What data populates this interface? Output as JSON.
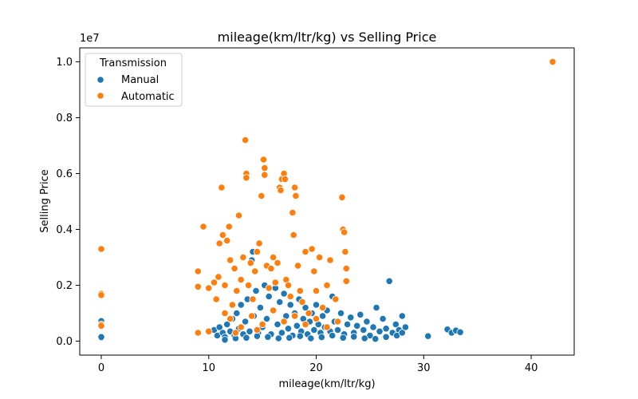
{
  "chart_data": {
    "type": "scatter",
    "title": "mileage(km/ltr/kg) vs Selling Price",
    "xlabel": "mileage(km/ltr/kg)",
    "ylabel": "Selling Price",
    "y_scale_label": "1e7",
    "xlim": [
      -2,
      44
    ],
    "ylim": [
      -0.5,
      10.5
    ],
    "x_ticks": [
      0,
      10,
      20,
      30,
      40
    ],
    "y_ticks": [
      0.0,
      0.2,
      0.4,
      0.6,
      0.8,
      1.0
    ],
    "y_tick_labels": [
      "0.0",
      "0.2",
      "0.4",
      "0.6",
      "0.8",
      "1.0"
    ],
    "grid": false,
    "legend": {
      "title": "Transmission",
      "position": "top-left"
    },
    "series": [
      {
        "name": "Manual",
        "color": "#1f77b4",
        "points": [
          [
            0,
            0.72
          ],
          [
            0,
            0.12
          ],
          [
            0,
            0.15
          ],
          [
            10.5,
            0.4
          ],
          [
            10.8,
            0.2
          ],
          [
            11.0,
            0.5
          ],
          [
            11.3,
            0.3
          ],
          [
            11.5,
            0.15
          ],
          [
            11.7,
            0.6
          ],
          [
            12.0,
            0.35
          ],
          [
            12.2,
            0.8
          ],
          [
            12.4,
            0.2
          ],
          [
            12.6,
            1.0
          ],
          [
            12.8,
            0.45
          ],
          [
            13.0,
            1.3
          ],
          [
            13.2,
            0.25
          ],
          [
            13.4,
            0.7
          ],
          [
            13.6,
            1.5
          ],
          [
            13.8,
            0.35
          ],
          [
            14.0,
            2.9
          ],
          [
            14.1,
            3.2
          ],
          [
            14.2,
            0.9
          ],
          [
            14.4,
            1.8
          ],
          [
            14.6,
            0.3
          ],
          [
            14.8,
            1.2
          ],
          [
            15.0,
            0.5
          ],
          [
            15.2,
            2.0
          ],
          [
            15.4,
            0.8
          ],
          [
            15.6,
            1.6
          ],
          [
            15.8,
            0.25
          ],
          [
            16.0,
            1.1
          ],
          [
            16.2,
            1.9
          ],
          [
            16.4,
            0.6
          ],
          [
            16.6,
            1.4
          ],
          [
            16.8,
            0.3
          ],
          [
            17.0,
            1.7
          ],
          [
            17.2,
            0.9
          ],
          [
            17.4,
            0.45
          ],
          [
            17.6,
            1.3
          ],
          [
            17.8,
            0.2
          ],
          [
            18.0,
            1.0
          ],
          [
            18.2,
            0.55
          ],
          [
            18.4,
            1.5
          ],
          [
            18.6,
            0.35
          ],
          [
            18.8,
            0.8
          ],
          [
            19.0,
            1.2
          ],
          [
            19.2,
            0.25
          ],
          [
            19.4,
            0.7
          ],
          [
            19.6,
            1.0
          ],
          [
            19.8,
            0.4
          ],
          [
            20.0,
            1.3
          ],
          [
            20.2,
            0.6
          ],
          [
            20.4,
            0.3
          ],
          [
            20.6,
            0.9
          ],
          [
            20.8,
            0.5
          ],
          [
            21.0,
            1.1
          ],
          [
            21.3,
            0.35
          ],
          [
            21.5,
            1.6
          ],
          [
            21.7,
            0.7
          ],
          [
            22.0,
            0.4
          ],
          [
            22.3,
            1.0
          ],
          [
            22.6,
            0.25
          ],
          [
            22.9,
            0.6
          ],
          [
            23.2,
            0.85
          ],
          [
            23.5,
            0.3
          ],
          [
            23.8,
            0.55
          ],
          [
            24.1,
            0.95
          ],
          [
            24.4,
            0.4
          ],
          [
            24.7,
            0.7
          ],
          [
            25.0,
            0.2
          ],
          [
            25.3,
            0.5
          ],
          [
            25.6,
            1.2
          ],
          [
            25.9,
            0.35
          ],
          [
            26.2,
            0.8
          ],
          [
            26.5,
            0.45
          ],
          [
            26.8,
            2.15
          ],
          [
            27.1,
            0.3
          ],
          [
            27.4,
            0.6
          ],
          [
            27.7,
            0.4
          ],
          [
            28.0,
            0.9
          ],
          [
            28.3,
            0.5
          ],
          [
            30.4,
            0.18
          ],
          [
            32.2,
            0.42
          ],
          [
            32.6,
            0.3
          ],
          [
            33.0,
            0.38
          ],
          [
            33.4,
            0.32
          ],
          [
            15.5,
            0.15
          ],
          [
            16.5,
            0.1
          ],
          [
            17.5,
            0.12
          ],
          [
            18.5,
            0.18
          ],
          [
            19.5,
            0.1
          ],
          [
            20.5,
            0.14
          ],
          [
            21.5,
            0.2
          ],
          [
            22.5,
            0.12
          ],
          [
            23.5,
            0.16
          ],
          [
            24.5,
            0.1
          ],
          [
            25.5,
            0.08
          ],
          [
            26.5,
            0.15
          ],
          [
            13.5,
            0.12
          ],
          [
            14.5,
            0.18
          ],
          [
            12.5,
            0.1
          ],
          [
            11.5,
            0.05
          ],
          [
            27.5,
            0.2
          ],
          [
            28.0,
            0.3
          ]
        ]
      },
      {
        "name": "Automatic",
        "color": "#ff7f0e",
        "points": [
          [
            0,
            3.3
          ],
          [
            0,
            1.7
          ],
          [
            0,
            1.65
          ],
          [
            0,
            0.6
          ],
          [
            0,
            0.55
          ],
          [
            9.0,
            2.5
          ],
          [
            9.0,
            1.95
          ],
          [
            9.0,
            0.3
          ],
          [
            9.5,
            4.1
          ],
          [
            10.0,
            1.9
          ],
          [
            10.0,
            0.35
          ],
          [
            10.5,
            2.1
          ],
          [
            10.7,
            1.5
          ],
          [
            10.9,
            2.3
          ],
          [
            11.0,
            3.5
          ],
          [
            11.2,
            5.5
          ],
          [
            11.3,
            3.8
          ],
          [
            11.5,
            2.0
          ],
          [
            11.7,
            3.6
          ],
          [
            11.9,
            4.1
          ],
          [
            12.0,
            2.9
          ],
          [
            12.2,
            1.3
          ],
          [
            12.4,
            2.6
          ],
          [
            12.6,
            1.8
          ],
          [
            12.8,
            4.5
          ],
          [
            13.0,
            2.2
          ],
          [
            13.2,
            3.0
          ],
          [
            13.4,
            7.2
          ],
          [
            13.5,
            6.0
          ],
          [
            13.5,
            5.85
          ],
          [
            13.7,
            2.0
          ],
          [
            13.9,
            2.8
          ],
          [
            14.1,
            1.5
          ],
          [
            14.3,
            2.5
          ],
          [
            14.5,
            3.2
          ],
          [
            14.7,
            3.5
          ],
          [
            14.9,
            5.2
          ],
          [
            15.1,
            6.5
          ],
          [
            15.2,
            6.2
          ],
          [
            15.2,
            5.95
          ],
          [
            15.4,
            2.7
          ],
          [
            15.6,
            1.9
          ],
          [
            15.8,
            2.6
          ],
          [
            16.0,
            3.0
          ],
          [
            16.2,
            2.1
          ],
          [
            16.4,
            2.8
          ],
          [
            16.6,
            5.5
          ],
          [
            16.7,
            5.4
          ],
          [
            16.8,
            5.8
          ],
          [
            17.0,
            6.0
          ],
          [
            17.1,
            5.8
          ],
          [
            17.2,
            2.2
          ],
          [
            17.4,
            2.0
          ],
          [
            17.6,
            1.6
          ],
          [
            17.8,
            4.6
          ],
          [
            17.9,
            3.8
          ],
          [
            18.0,
            5.5
          ],
          [
            18.1,
            5.2
          ],
          [
            18.3,
            2.7
          ],
          [
            18.5,
            1.8
          ],
          [
            18.7,
            1.4
          ],
          [
            19.0,
            3.2
          ],
          [
            19.3,
            1.0
          ],
          [
            19.6,
            3.3
          ],
          [
            19.8,
            2.5
          ],
          [
            20.0,
            1.8
          ],
          [
            20.3,
            3.0
          ],
          [
            20.6,
            1.2
          ],
          [
            21.0,
            2.0
          ],
          [
            21.3,
            2.9
          ],
          [
            21.8,
            1.5
          ],
          [
            22.4,
            5.15
          ],
          [
            22.5,
            4.0
          ],
          [
            22.6,
            3.9
          ],
          [
            22.7,
            3.2
          ],
          [
            22.8,
            2.6
          ],
          [
            22.8,
            2.15
          ],
          [
            12.0,
            0.8
          ],
          [
            13.0,
            0.5
          ],
          [
            14.0,
            0.9
          ],
          [
            15.0,
            0.6
          ],
          [
            16.0,
            1.1
          ],
          [
            17.0,
            0.7
          ],
          [
            18.0,
            0.9
          ],
          [
            19.0,
            0.6
          ],
          [
            20.0,
            0.8
          ],
          [
            11.5,
            1.0
          ],
          [
            12.5,
            0.3
          ],
          [
            14.5,
            0.4
          ],
          [
            21.0,
            0.5
          ],
          [
            22.0,
            0.7
          ],
          [
            42.0,
            10.0
          ]
        ]
      }
    ]
  }
}
